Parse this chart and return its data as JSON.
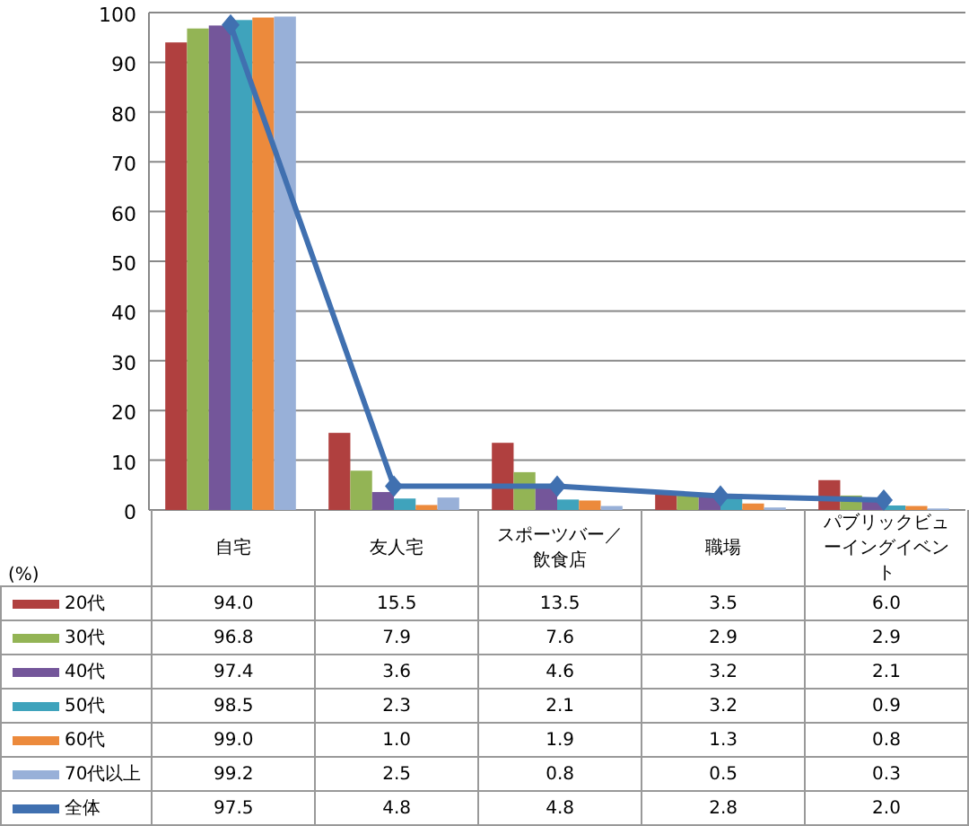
{
  "chart_data": {
    "type": "bar",
    "ylabel": "(%)",
    "categories": [
      "自宅",
      "友人宅",
      "スポーツバー／飲食店",
      "職場",
      "パブリックビューイングイベント"
    ],
    "series": [
      {
        "name": "20代",
        "color": "#b0403f",
        "values": [
          94.0,
          15.5,
          13.5,
          3.5,
          6.0
        ],
        "value_labels": [
          "94.0",
          "15.5",
          "13.5",
          "3.5",
          "6.0"
        ]
      },
      {
        "name": "30代",
        "color": "#93b455",
        "values": [
          96.8,
          7.9,
          7.6,
          2.9,
          2.9
        ],
        "value_labels": [
          "96.8",
          "7.9",
          "7.6",
          "2.9",
          "2.9"
        ]
      },
      {
        "name": "40代",
        "color": "#74569a",
        "values": [
          97.4,
          3.6,
          4.6,
          3.2,
          2.1
        ],
        "value_labels": [
          "97.4",
          "3.6",
          "4.6",
          "3.2",
          "2.1"
        ]
      },
      {
        "name": "50代",
        "color": "#3fa3bc",
        "values": [
          98.5,
          2.3,
          2.1,
          3.2,
          0.9
        ],
        "value_labels": [
          "98.5",
          "2.3",
          "2.1",
          "3.2",
          "0.9"
        ]
      },
      {
        "name": "60代",
        "color": "#ec8a3c",
        "values": [
          99.0,
          1.0,
          1.9,
          1.3,
          0.8
        ],
        "value_labels": [
          "99.0",
          "1.0",
          "1.9",
          "1.3",
          "0.8"
        ]
      },
      {
        "name": "70代以上",
        "color": "#98b0d8",
        "values": [
          99.2,
          2.5,
          0.8,
          0.5,
          0.3
        ],
        "value_labels": [
          "99.2",
          "2.5",
          "0.8",
          "0.5",
          "0.3"
        ]
      },
      {
        "name": "全体",
        "type": "line",
        "color": "#4070b0",
        "marker": "diamond",
        "line_style": "solid",
        "values": [
          97.5,
          4.8,
          4.8,
          2.8,
          2.0
        ],
        "value_labels": [
          "97.5",
          "4.8",
          "4.8",
          "2.8",
          "2.0"
        ]
      }
    ],
    "ylim": [
      0,
      100
    ],
    "yticks": [
      0,
      10,
      20,
      30,
      40,
      50,
      60,
      70,
      80,
      90,
      100
    ],
    "grid": "y",
    "legend": "bottom"
  }
}
